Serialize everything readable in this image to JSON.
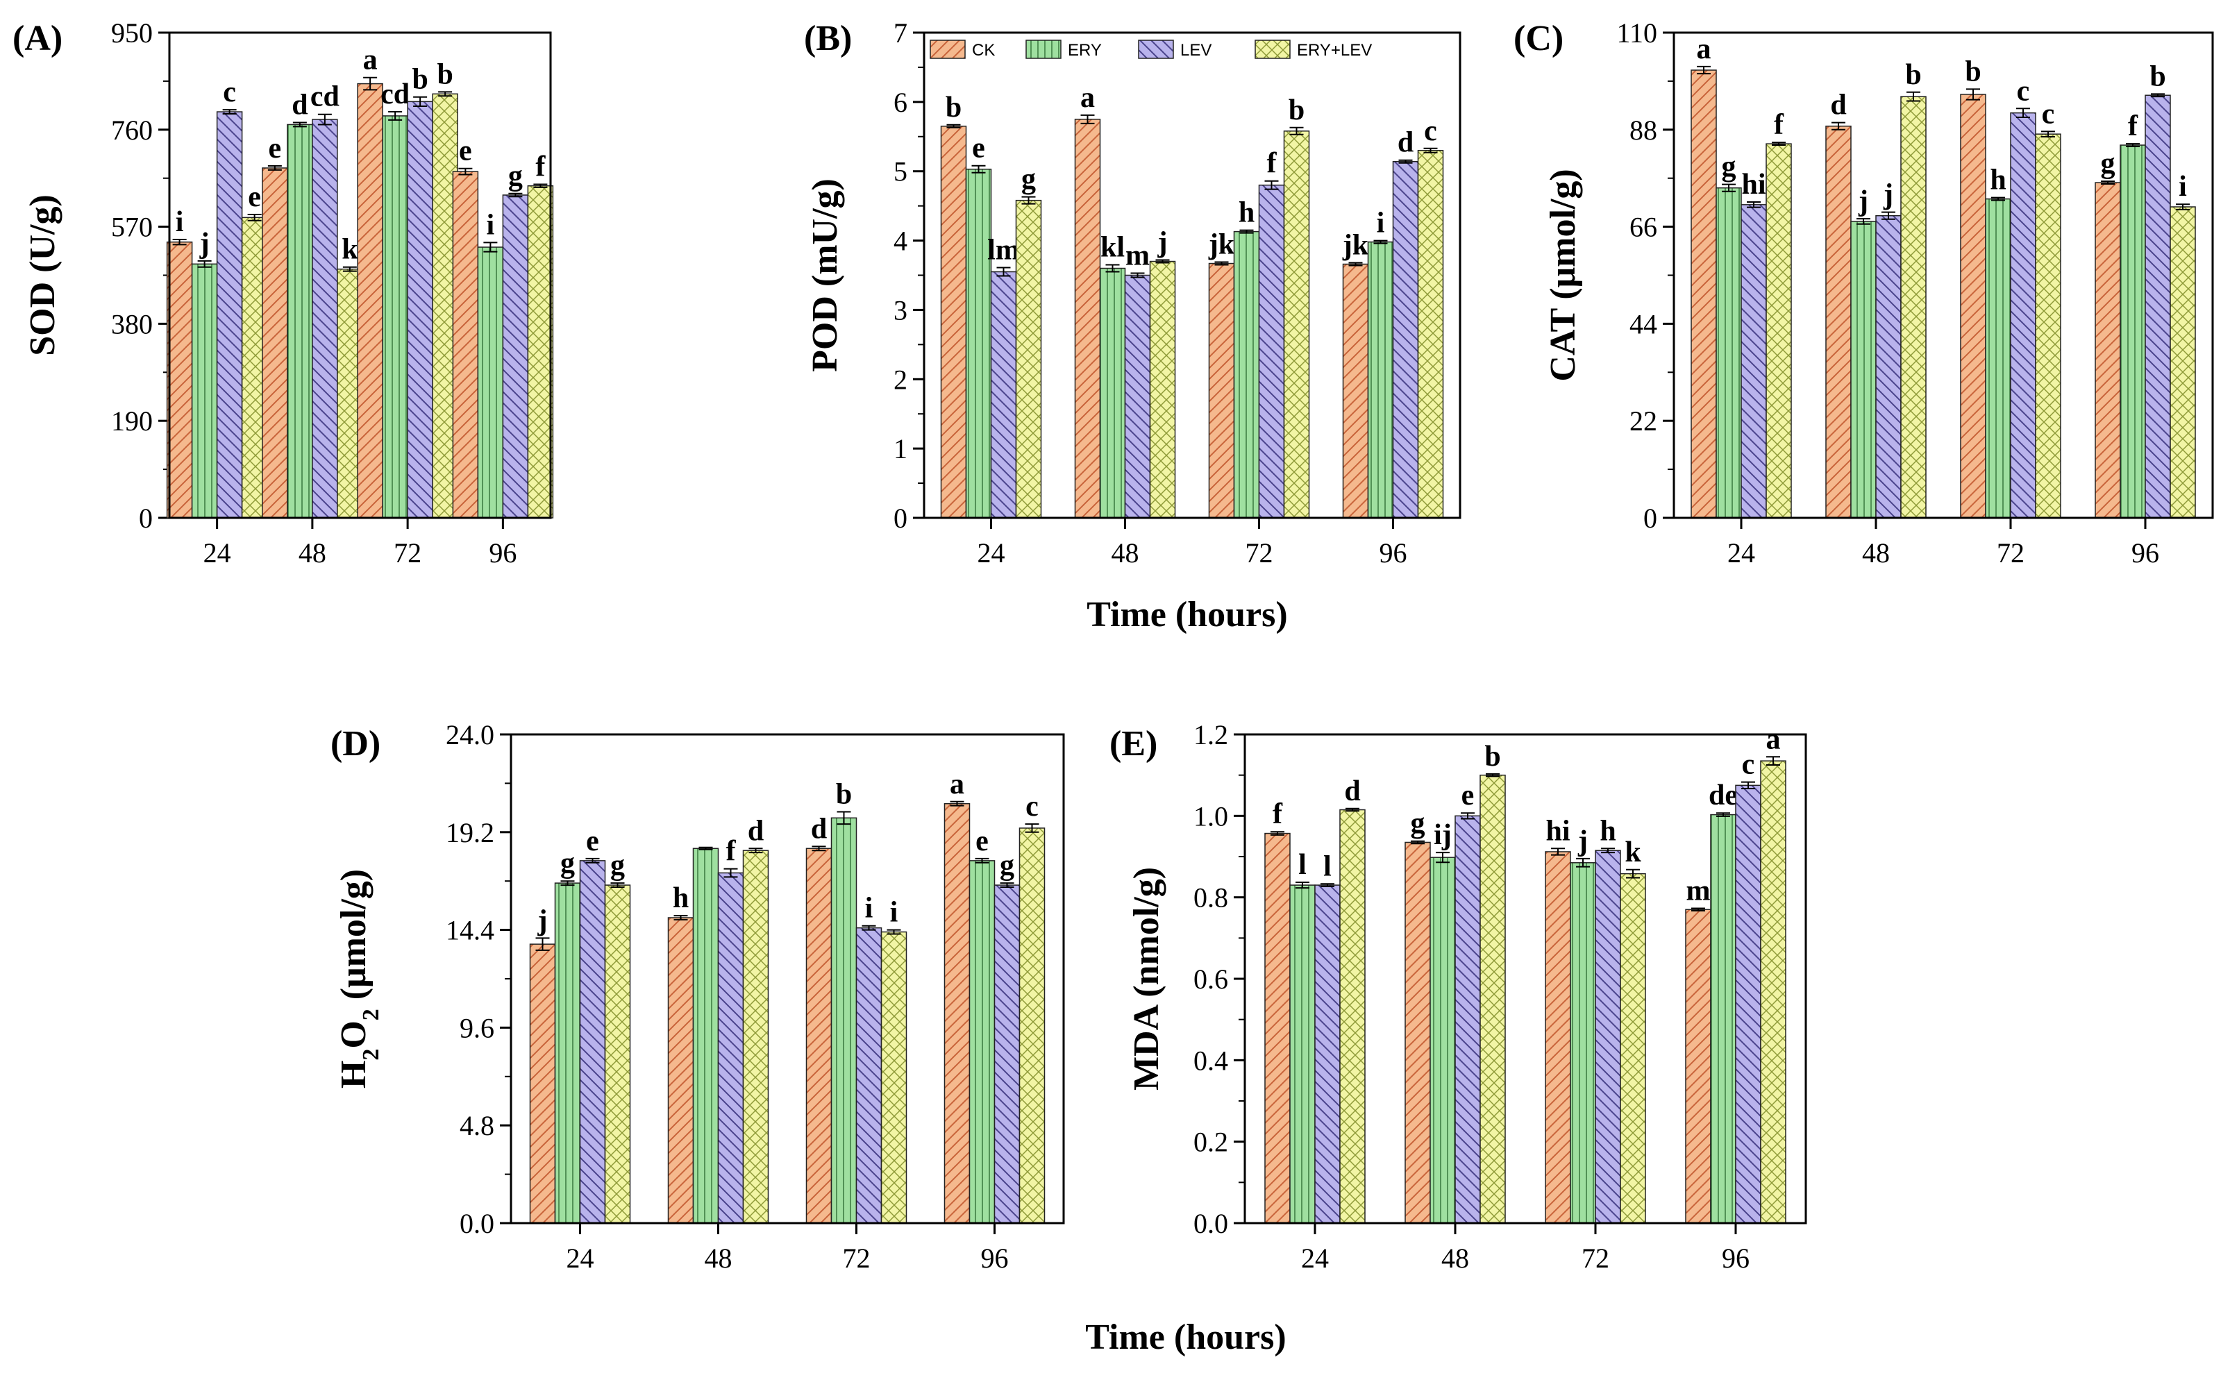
{
  "figure": {
    "time_xlabel_top": "Time (hours)",
    "time_xlabel_bottom": "Time (hours)"
  },
  "legend": {
    "items": [
      "CK",
      "ERY",
      "LEV",
      "ERY+LEV"
    ]
  },
  "series_style": [
    {
      "name": "CK",
      "fill": "#F5B98E",
      "hatch": "#C8643A",
      "pattern": "diag"
    },
    {
      "name": "ERY",
      "fill": "#9FE0A0",
      "hatch": "#3E7F44",
      "pattern": "vert"
    },
    {
      "name": "LEV",
      "fill": "#B9B3EC",
      "hatch": "#4A438C",
      "pattern": "anti"
    },
    {
      "name": "ERY+LEV",
      "fill": "#F2F5A5",
      "hatch": "#8E9A38",
      "pattern": "cross"
    }
  ],
  "chart_data": [
    {
      "id": "A",
      "panel": "(A)",
      "type": "bar",
      "ylabel": "SOD (U/g)",
      "categories": [
        "24",
        "48",
        "72",
        "96"
      ],
      "ylim": [
        0,
        950
      ],
      "yticks": [
        "0",
        "190",
        "380",
        "570",
        "760",
        "950"
      ],
      "series": [
        {
          "name": "CK",
          "values": [
            540,
            685,
            850,
            678
          ],
          "errors": [
            5,
            4,
            12,
            6
          ],
          "letters": [
            "i",
            "e",
            "a",
            "e"
          ]
        },
        {
          "name": "ERY",
          "values": [
            497,
            770,
            787,
            530
          ],
          "errors": [
            6,
            4,
            8,
            9
          ],
          "letters": [
            "j",
            "d",
            "cd",
            "i"
          ]
        },
        {
          "name": "LEV",
          "values": [
            795,
            780,
            815,
            632
          ],
          "errors": [
            4,
            10,
            9,
            3
          ],
          "letters": [
            "c",
            "cd",
            "b",
            "g"
          ]
        },
        {
          "name": "ERY+LEV",
          "values": [
            588,
            487,
            830,
            650
          ],
          "errors": [
            6,
            4,
            4,
            3
          ],
          "letters": [
            "e",
            "k",
            "b",
            "f"
          ]
        }
      ]
    },
    {
      "id": "B",
      "panel": "(B)",
      "type": "bar",
      "ylabel": "POD (mU/g)",
      "categories": [
        "24",
        "48",
        "72",
        "96"
      ],
      "ylim": [
        0,
        7
      ],
      "yticks": [
        "0",
        "1",
        "2",
        "3",
        "4",
        "5",
        "6",
        "7"
      ],
      "series": [
        {
          "name": "CK",
          "values": [
            5.65,
            5.75,
            3.67,
            3.66
          ],
          "errors": [
            0.02,
            0.06,
            0.02,
            0.02
          ],
          "letters": [
            "b",
            "a",
            "jk",
            "jk"
          ]
        },
        {
          "name": "ERY",
          "values": [
            5.03,
            3.6,
            4.13,
            3.98
          ],
          "errors": [
            0.05,
            0.05,
            0.02,
            0.02
          ],
          "letters": [
            "e",
            "kl",
            "h",
            "i"
          ]
        },
        {
          "name": "LEV",
          "values": [
            3.55,
            3.5,
            4.8,
            5.14
          ],
          "errors": [
            0.06,
            0.03,
            0.06,
            0.02
          ],
          "letters": [
            "lm",
            "m",
            "f",
            "d"
          ]
        },
        {
          "name": "ERY+LEV",
          "values": [
            4.58,
            3.7,
            5.58,
            5.3
          ],
          "errors": [
            0.05,
            0.02,
            0.05,
            0.03
          ],
          "letters": [
            "g",
            "j",
            "b",
            "c"
          ]
        }
      ]
    },
    {
      "id": "C",
      "panel": "(C)",
      "type": "bar",
      "ylabel": "CAT (μmol/g)",
      "categories": [
        "24",
        "48",
        "72",
        "96"
      ],
      "ylim": [
        0,
        110
      ],
      "yticks": [
        "0",
        "22",
        "44",
        "66",
        "88",
        "110"
      ],
      "series": [
        {
          "name": "CK",
          "values": [
            101.5,
            88.8,
            96,
            76
          ],
          "errors": [
            0.8,
            0.8,
            1.2,
            0.3
          ],
          "letters": [
            "a",
            "d",
            "b",
            "g"
          ]
        },
        {
          "name": "ERY",
          "values": [
            74.8,
            67.2,
            72.3,
            84.5
          ],
          "errors": [
            0.8,
            0.6,
            0.3,
            0.3
          ],
          "letters": [
            "g",
            "j",
            "h",
            "f"
          ]
        },
        {
          "name": "LEV",
          "values": [
            71,
            68.5,
            91.8,
            95.8
          ],
          "errors": [
            0.6,
            0.8,
            1,
            0.3
          ],
          "letters": [
            "hi",
            "j",
            "c",
            "b"
          ]
        },
        {
          "name": "ERY+LEV",
          "values": [
            84.8,
            95.5,
            87,
            70.5
          ],
          "errors": [
            0.3,
            1,
            0.6,
            0.6
          ],
          "letters": [
            "f",
            "b",
            "c",
            "i"
          ]
        }
      ]
    },
    {
      "id": "D",
      "panel": "(D)",
      "type": "bar",
      "ylabel": "H2O2 (μmol/g)",
      "categories": [
        "24",
        "48",
        "72",
        "96"
      ],
      "ylim": [
        0,
        24
      ],
      "yticks": [
        "0.0",
        "4.8",
        "9.6",
        "14.4",
        "19.2",
        "24.0"
      ],
      "series": [
        {
          "name": "CK",
          "values": [
            13.7,
            15.0,
            18.4,
            20.6
          ],
          "errors": [
            0.3,
            0.1,
            0.1,
            0.1
          ],
          "letters": [
            "j",
            "h",
            "d",
            "a"
          ]
        },
        {
          "name": "ERY",
          "values": [
            16.7,
            18.4,
            19.9,
            17.8
          ],
          "errors": [
            0.1,
            0.05,
            0.3,
            0.1
          ],
          "letters": [
            "g",
            "",
            "b",
            "e"
          ]
        },
        {
          "name": "LEV",
          "values": [
            17.8,
            17.2,
            14.5,
            16.6
          ],
          "errors": [
            0.1,
            0.2,
            0.1,
            0.1
          ],
          "letters": [
            "e",
            "f",
            "i",
            "g"
          ]
        },
        {
          "name": "ERY+LEV",
          "values": [
            16.6,
            18.3,
            14.3,
            19.4
          ],
          "errors": [
            0.1,
            0.1,
            0.1,
            0.2
          ],
          "letters": [
            "g",
            "d",
            "i",
            "c"
          ]
        }
      ]
    },
    {
      "id": "E",
      "panel": "(E)",
      "type": "bar",
      "ylabel": "MDA (nmol/g)",
      "categories": [
        "24",
        "48",
        "72",
        "96"
      ],
      "ylim": [
        0,
        1.2
      ],
      "yticks": [
        "0.0",
        "0.2",
        "0.4",
        "0.6",
        "0.8",
        "1.0",
        "1.2"
      ],
      "series": [
        {
          "name": "CK",
          "values": [
            0.957,
            0.935,
            0.912,
            0.77
          ],
          "errors": [
            0.004,
            0.003,
            0.008,
            0.003
          ],
          "letters": [
            "f",
            "g",
            "hi",
            "m"
          ]
        },
        {
          "name": "ERY",
          "values": [
            0.83,
            0.898,
            0.885,
            1.003
          ],
          "errors": [
            0.007,
            0.012,
            0.01,
            0.004
          ],
          "letters": [
            "l",
            "ij",
            "j",
            "de"
          ]
        },
        {
          "name": "LEV",
          "values": [
            0.83,
            1.0,
            0.915,
            1.075
          ],
          "errors": [
            0.003,
            0.007,
            0.005,
            0.008
          ],
          "letters": [
            "l",
            "e",
            "h",
            "c"
          ]
        },
        {
          "name": "ERY+LEV",
          "values": [
            1.015,
            1.1,
            0.858,
            1.135
          ],
          "errors": [
            0.003,
            0.003,
            0.01,
            0.01
          ],
          "letters": [
            "d",
            "b",
            "k",
            "a"
          ]
        }
      ]
    }
  ]
}
